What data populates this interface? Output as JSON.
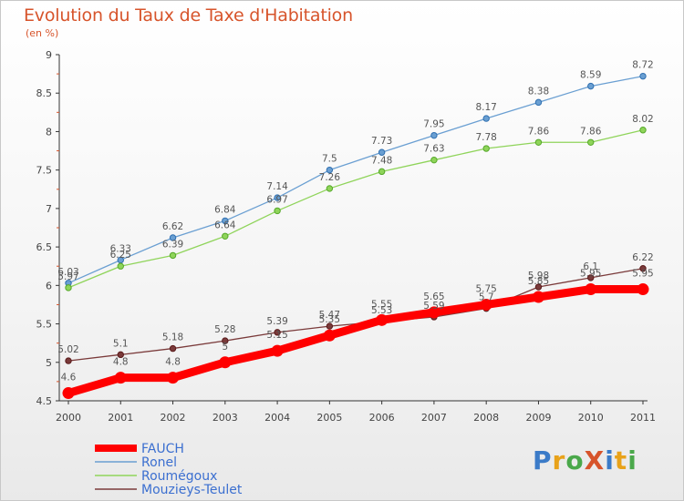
{
  "chart_data": {
    "type": "line",
    "title": "Evolution du Taux de Taxe d'Habitation",
    "subtitle": "(en %)",
    "x": [
      2000,
      2001,
      2002,
      2003,
      2004,
      2005,
      2006,
      2007,
      2008,
      2009,
      2010,
      2011
    ],
    "ylim": [
      4.5,
      9
    ],
    "yticks": [
      "4.5",
      "5",
      "5.5",
      "6",
      "6.5",
      "7",
      "7.5",
      "8",
      "8.5",
      "9"
    ],
    "grid": false,
    "legend_position": "bottom-left",
    "series": [
      {
        "name": "FAUCH",
        "color": "#ff0000",
        "values": [
          4.6,
          4.8,
          4.8,
          5.0,
          5.15,
          5.35,
          5.55,
          5.65,
          5.75,
          5.85,
          5.95,
          5.95
        ],
        "labels": [
          "4.6",
          "4.8",
          "4.8",
          "5",
          "5.15",
          "5.35",
          "5.55",
          "5.65",
          "5.75",
          "5.85",
          "5.95",
          "5.95"
        ]
      },
      {
        "name": "Ronel",
        "color": "#6a9fd2",
        "values": [
          6.03,
          6.33,
          6.62,
          6.84,
          7.14,
          7.5,
          7.73,
          7.95,
          8.17,
          8.38,
          8.59,
          8.72
        ],
        "labels": [
          "6.03",
          "6.33",
          "6.62",
          "6.84",
          "7.14",
          "7.5",
          "7.73",
          "7.95",
          "8.17",
          "8.38",
          "8.59",
          "8.72"
        ]
      },
      {
        "name": "Roumégoux",
        "color": "#8fd45a",
        "values": [
          5.97,
          6.25,
          6.39,
          6.64,
          6.97,
          7.26,
          7.48,
          7.63,
          7.78,
          7.86,
          7.86,
          8.02
        ],
        "labels": [
          "5.97",
          "6.25",
          "6.39",
          "6.64",
          "6.97",
          "7.26",
          "7.48",
          "7.63",
          "7.78",
          "7.86",
          "7.86",
          "8.02"
        ]
      },
      {
        "name": "Mouzieys-Teulet",
        "color": "#7a3a3a",
        "values": [
          5.02,
          5.1,
          5.18,
          5.28,
          5.39,
          5.47,
          5.53,
          5.59,
          5.7,
          5.98,
          6.1,
          6.22
        ],
        "labels": [
          "5.02",
          "5.1",
          "5.18",
          "5.28",
          "5.39",
          "5.47",
          "5.53",
          "5.59",
          "5.7",
          "5.98",
          "6.1",
          "6.22"
        ]
      }
    ]
  },
  "logo": {
    "text": "ProXiti",
    "colors": [
      "#3b7bc8",
      "#e8a21a",
      "#4aa84a",
      "#d7542b",
      "#3b7bc8",
      "#e8a21a",
      "#4aa84a"
    ]
  }
}
